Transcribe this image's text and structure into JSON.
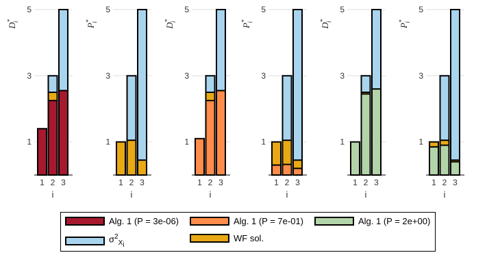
{
  "chart_data": [
    {
      "type": "bar",
      "ylabel": "D",
      "ylabel_sub": "i",
      "ylabel_sup": "*",
      "categories": [
        "1",
        "2",
        "3"
      ],
      "xlabel": "i",
      "yticks": [
        "1",
        "3",
        "5"
      ],
      "ylim": [
        0,
        5
      ],
      "sigma": [
        0,
        3,
        5
      ],
      "wf": [
        0,
        2.5,
        2.55
      ],
      "alg": [
        1.4,
        2.25,
        2.55
      ],
      "alg_color": "#a6192e"
    },
    {
      "type": "bar",
      "ylabel": "P",
      "ylabel_sub": "i",
      "ylabel_sup": "*",
      "categories": [
        "1",
        "2",
        "3"
      ],
      "xlabel": "i",
      "yticks": [
        "1",
        "3",
        "5"
      ],
      "ylim": [
        0,
        5
      ],
      "sigma": [
        0,
        3,
        5
      ],
      "wf": [
        1,
        1.05,
        0.45
      ],
      "alg": [
        0,
        0,
        0
      ],
      "alg_color": "#a6192e"
    },
    {
      "type": "bar",
      "ylabel": "D",
      "ylabel_sub": "i",
      "ylabel_sup": "*",
      "categories": [
        "1",
        "2",
        "3"
      ],
      "xlabel": "i",
      "yticks": [
        "1",
        "3",
        "5"
      ],
      "ylim": [
        0,
        5
      ],
      "sigma": [
        0,
        3,
        5
      ],
      "wf": [
        0,
        2.5,
        2.55
      ],
      "alg": [
        1.1,
        2.25,
        2.55
      ],
      "alg_color": "#ff8c4a"
    },
    {
      "type": "bar",
      "ylabel": "P",
      "ylabel_sub": "i",
      "ylabel_sup": "*",
      "categories": [
        "1",
        "2",
        "3"
      ],
      "xlabel": "i",
      "yticks": [
        "1",
        "3",
        "5"
      ],
      "ylim": [
        0,
        5
      ],
      "sigma": [
        0,
        3,
        5
      ],
      "wf": [
        1,
        1.05,
        0.45
      ],
      "alg": [
        0.3,
        0.32,
        0.2
      ],
      "alg_color": "#ff8c4a"
    },
    {
      "type": "bar",
      "ylabel": "D",
      "ylabel_sub": "i",
      "ylabel_sup": "*",
      "categories": [
        "1",
        "2",
        "3"
      ],
      "xlabel": "i",
      "yticks": [
        "1",
        "3",
        "5"
      ],
      "ylim": [
        0,
        5
      ],
      "sigma": [
        0,
        3,
        5
      ],
      "wf": [
        0,
        2.5,
        2.55
      ],
      "alg": [
        1,
        2.45,
        2.6
      ],
      "alg_color": "#b3d4a8"
    },
    {
      "type": "bar",
      "ylabel": "P",
      "ylabel_sub": "i",
      "ylabel_sup": "*",
      "categories": [
        "1",
        "2",
        "3"
      ],
      "xlabel": "i",
      "yticks": [
        "1",
        "3",
        "5"
      ],
      "ylim": [
        0,
        5
      ],
      "sigma": [
        0,
        3,
        5
      ],
      "wf": [
        1,
        1.05,
        0.45
      ],
      "alg": [
        0.85,
        0.9,
        0.4
      ],
      "alg_color": "#b3d4a8"
    }
  ],
  "colors": {
    "sigma": "#a8d4ee",
    "wf": "#e8a915",
    "alg1": "#a6192e",
    "alg2": "#ff8c4a",
    "alg3": "#b3d4a8",
    "grid": "#dddddd"
  },
  "legend": {
    "alg1": "Alg. 1 (P = 3e-06)",
    "alg2": "Alg. 1 (P = 7e-01)",
    "alg3": "Alg. 1 (P = 2e+00)",
    "sigma_base": "σ",
    "sigma_sup": "2",
    "sigma_sub": "X",
    "sigma_subsub": "i",
    "wf": "WF sol."
  }
}
